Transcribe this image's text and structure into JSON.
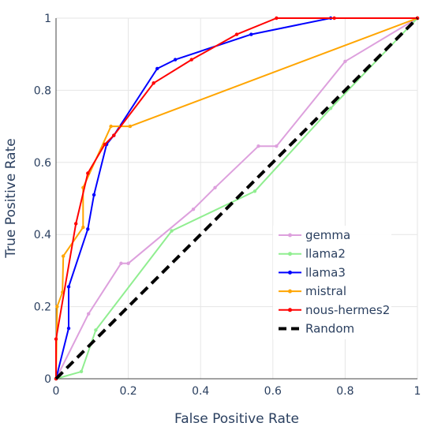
{
  "chart_data": {
    "type": "line",
    "title": "",
    "xlabel": "False Positive Rate",
    "ylabel": "True Positive Rate",
    "xlim": [
      0,
      1
    ],
    "ylim": [
      0,
      1
    ],
    "x_ticks": [
      0,
      0.2,
      0.4,
      0.6,
      0.8,
      1
    ],
    "y_ticks": [
      0,
      0.2,
      0.4,
      0.6,
      0.8,
      1
    ],
    "x_tick_labels": [
      "0",
      "0.2",
      "0.4",
      "0.6",
      "0.8",
      "1"
    ],
    "y_tick_labels": [
      "0",
      "0.2",
      "0.4",
      "0.6",
      "0.8",
      "1"
    ],
    "grid": true,
    "legend_position": "bottom-right",
    "series": [
      {
        "name": "gemma",
        "color": "#dda0dd",
        "dash": "solid",
        "markers": true,
        "x": [
          0,
          0.09,
          0.18,
          0.2,
          0.38,
          0.44,
          0.56,
          0.61,
          0.8,
          1
        ],
        "y": [
          0,
          0.18,
          0.32,
          0.32,
          0.47,
          0.53,
          0.645,
          0.645,
          0.88,
          1
        ]
      },
      {
        "name": "llama2",
        "color": "#90ee90",
        "dash": "solid",
        "markers": true,
        "x": [
          0,
          0.07,
          0.11,
          0.32,
          0.55,
          0.76,
          1
        ],
        "y": [
          0,
          0.02,
          0.135,
          0.41,
          0.52,
          0.75,
          1
        ]
      },
      {
        "name": "llama3",
        "color": "#0000ff",
        "dash": "solid",
        "markers": true,
        "x": [
          0,
          0.035,
          0.035,
          0.088,
          0.105,
          0.14,
          0.16,
          0.28,
          0.33,
          0.54,
          0.76,
          1
        ],
        "y": [
          0,
          0.14,
          0.255,
          0.415,
          0.51,
          0.65,
          0.675,
          0.86,
          0.885,
          0.955,
          1,
          1
        ]
      },
      {
        "name": "mistral",
        "color": "#ffa500",
        "dash": "solid",
        "markers": true,
        "x": [
          0,
          0.003,
          0.018,
          0.02,
          0.075,
          0.075,
          0.152,
          0.205,
          1
        ],
        "y": [
          0,
          0.2,
          0.24,
          0.34,
          0.42,
          0.53,
          0.7,
          0.7,
          1
        ]
      },
      {
        "name": "nous-hermes2",
        "color": "#ff0000",
        "dash": "solid",
        "markers": true,
        "x": [
          0,
          0,
          0.055,
          0.088,
          0.135,
          0.16,
          0.27,
          0.375,
          0.5,
          0.61,
          0.77,
          1
        ],
        "y": [
          0,
          0.11,
          0.43,
          0.57,
          0.65,
          0.675,
          0.82,
          0.885,
          0.955,
          1,
          1,
          1
        ]
      },
      {
        "name": "Random",
        "color": "#000000",
        "dash": "dash",
        "markers": false,
        "x": [
          0,
          1
        ],
        "y": [
          0,
          1
        ]
      }
    ]
  }
}
